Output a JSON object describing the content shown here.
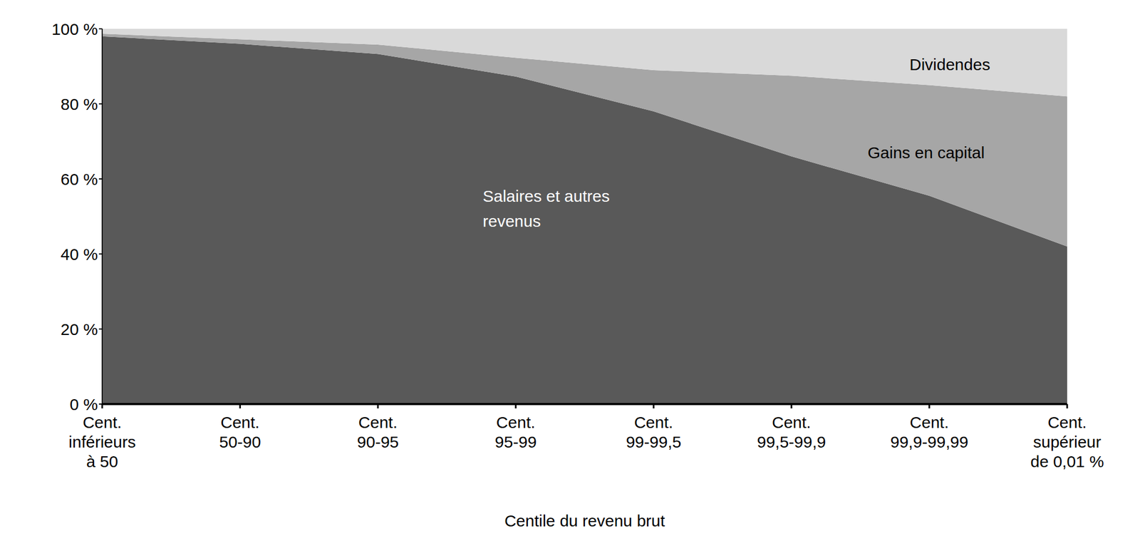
{
  "chart_data": {
    "type": "area",
    "stacked": true,
    "x_label": "Centile du revenu brut",
    "categories": [
      "Cent. inférieurs à 50",
      "Cent. 50-90",
      "Cent. 90-95",
      "Cent. 95-99",
      "Cent. 99-99,5",
      "Cent. 99,5-99,9",
      "Cent. 99,9-99,99",
      "Cent. supérieur de 0,01 %"
    ],
    "series": [
      {
        "name": "Salaires et autres revenus",
        "color": "#595959",
        "values": [
          98,
          96,
          93.3,
          87.3,
          78,
          66,
          55.5,
          42
        ]
      },
      {
        "name": "Gains en capital",
        "color": "#a6a6a6",
        "values": [
          0.7,
          1.2,
          2.5,
          5,
          11,
          21.5,
          29.5,
          40
        ]
      },
      {
        "name": "Dividendes",
        "color": "#d9d9d9",
        "values": [
          1.3,
          2.8,
          4.2,
          7.7,
          11,
          12.5,
          15,
          18
        ]
      }
    ],
    "ylim": [
      0,
      100
    ],
    "yticks": [
      {
        "value": 0,
        "label": "0 %"
      },
      {
        "value": 20,
        "label": "20 %"
      },
      {
        "value": 40,
        "label": "40 %"
      },
      {
        "value": 60,
        "label": "60 %"
      },
      {
        "value": 80,
        "label": "80 %"
      },
      {
        "value": 100,
        "label": "100 %"
      }
    ],
    "grid": false,
    "legend": "none"
  }
}
